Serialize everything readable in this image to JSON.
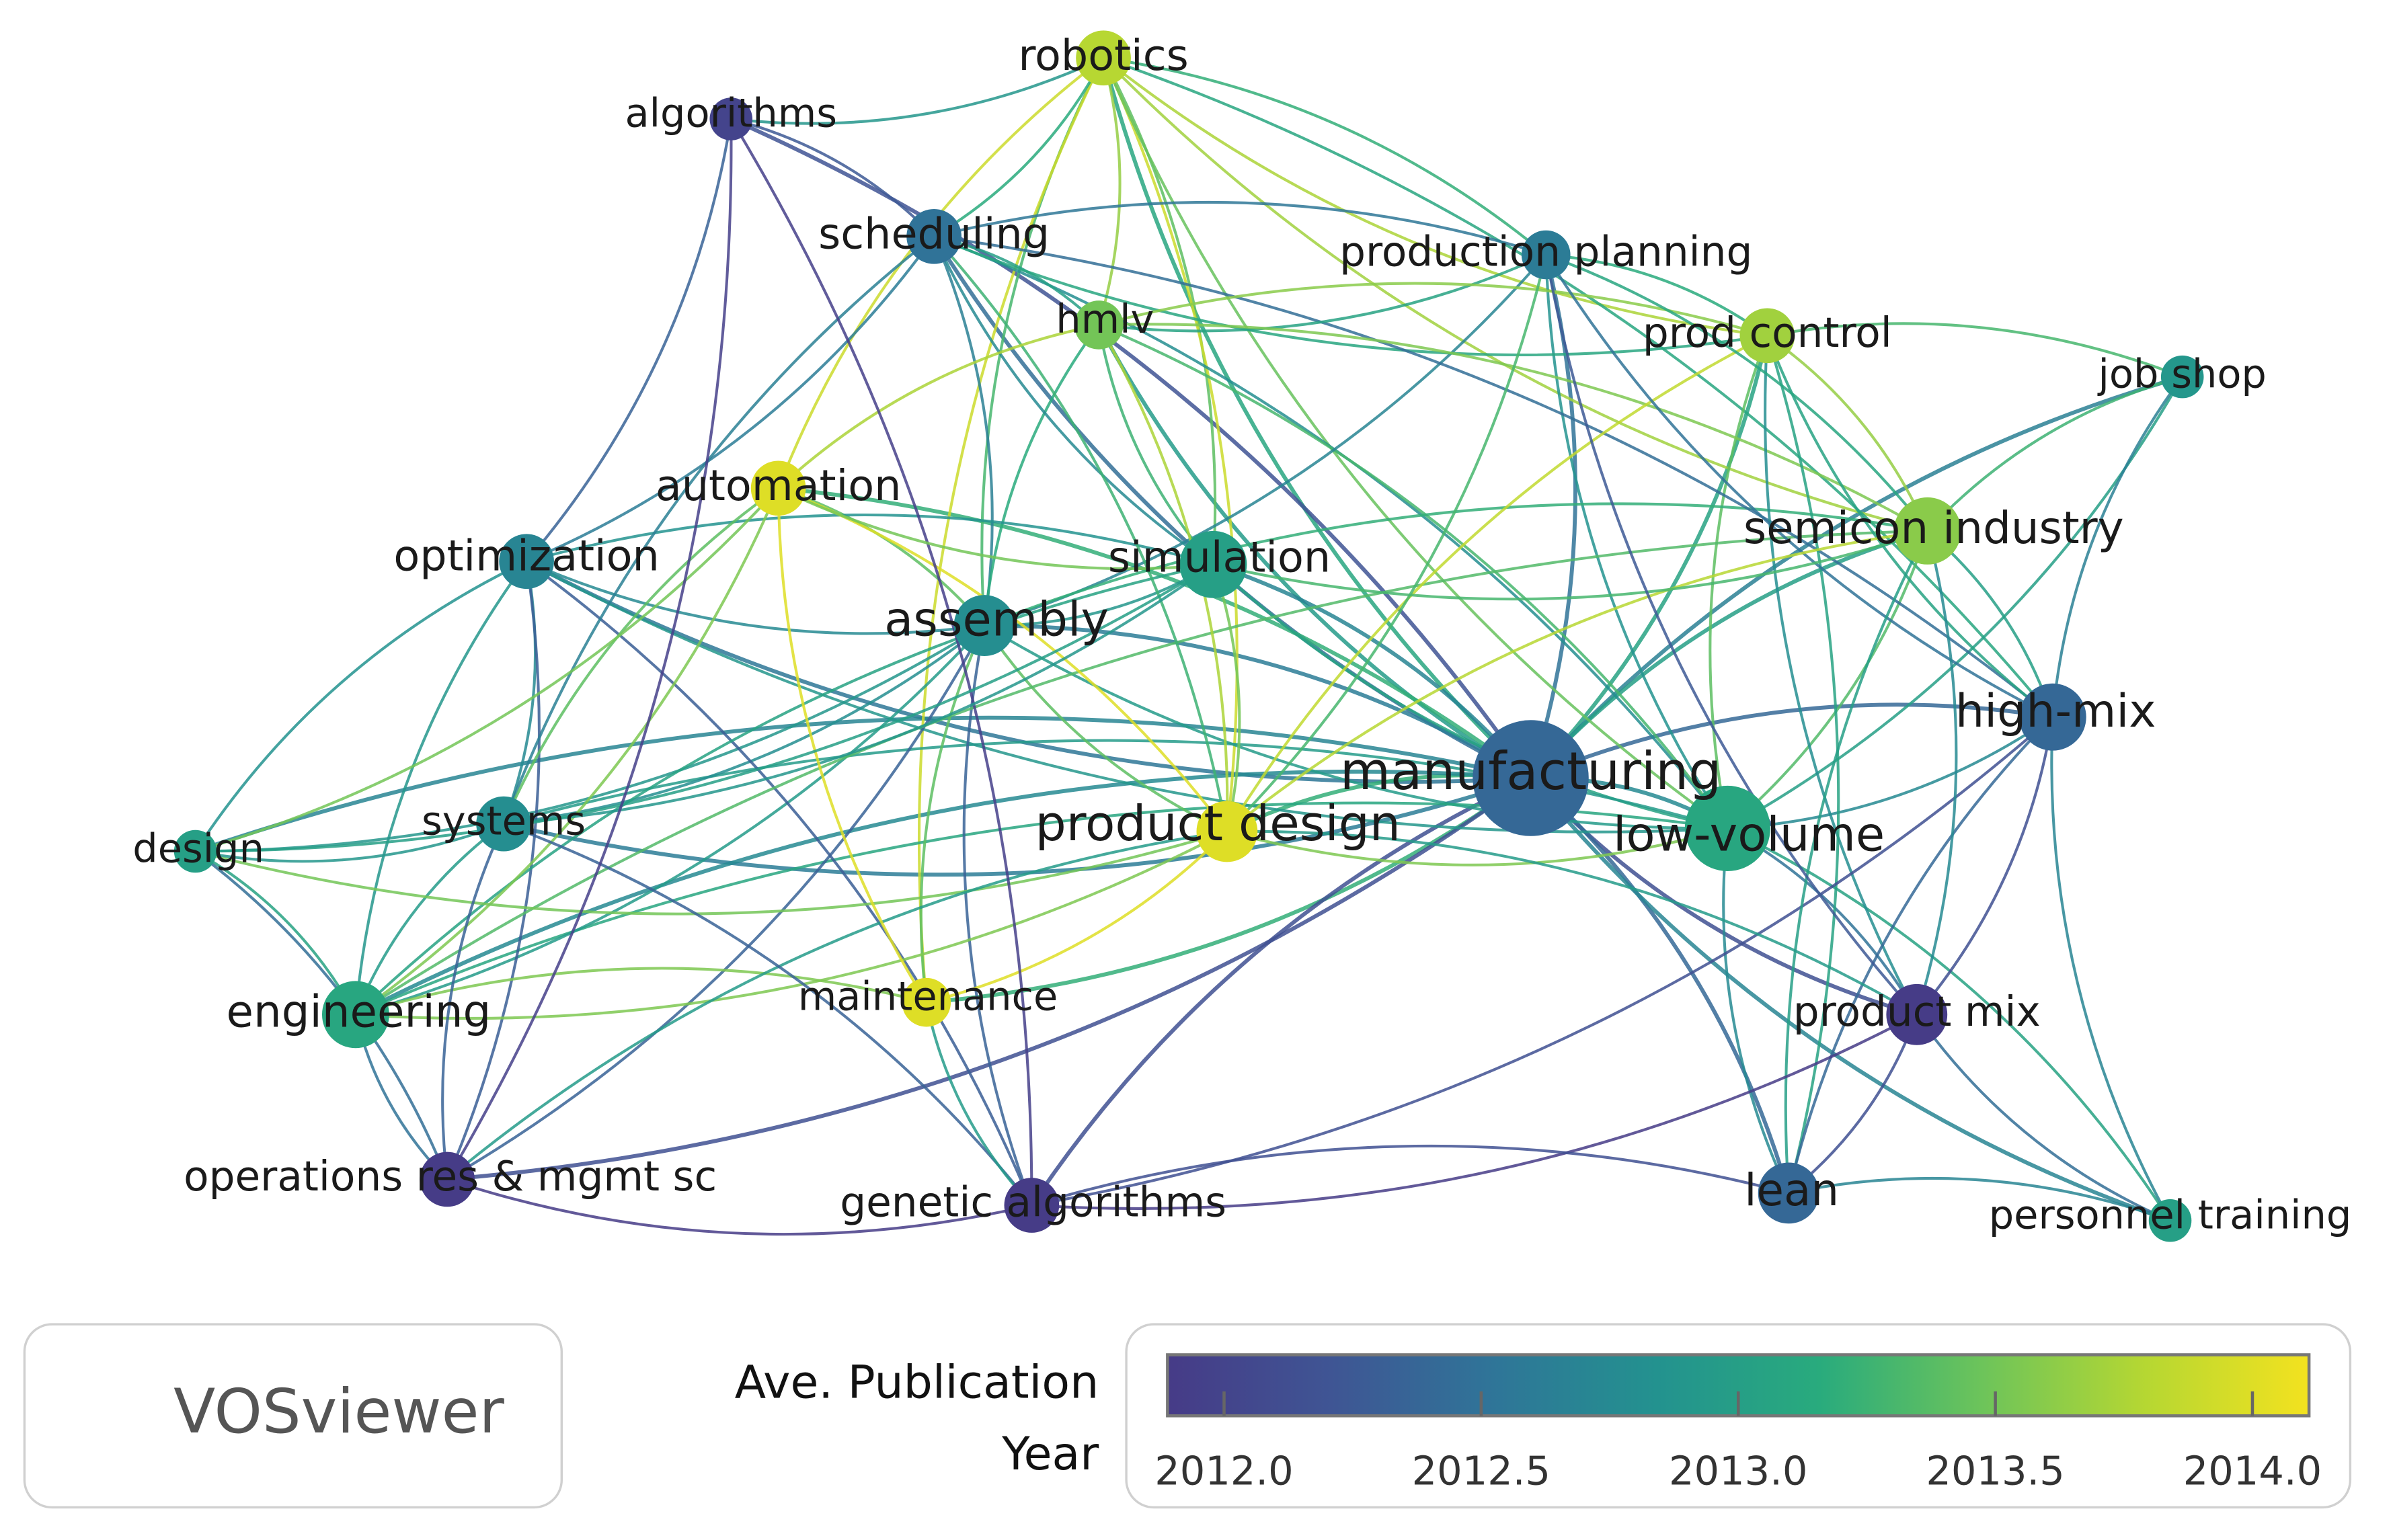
{
  "nodes": [
    {
      "label": "robotics",
      "year": 2013.8
    },
    {
      "label": "algorithms",
      "year": 2012.0
    },
    {
      "label": "scheduling",
      "year": 2012.5
    },
    {
      "label": "production planning",
      "year": 2012.6
    },
    {
      "label": "hmlv",
      "year": 2013.5
    },
    {
      "label": "prod control",
      "year": 2013.7
    },
    {
      "label": "job shop",
      "year": 2012.9
    },
    {
      "label": "automation",
      "year": 2014.0
    },
    {
      "label": "optimization",
      "year": 2012.7
    },
    {
      "label": "simulation",
      "year": 2013.0
    },
    {
      "label": "semicon industry",
      "year": 2013.6
    },
    {
      "label": "assembly",
      "year": 2012.8
    },
    {
      "label": "high-mix",
      "year": 2012.4
    },
    {
      "label": "manufacturing",
      "year": 2012.4
    },
    {
      "label": "design",
      "year": 2013.0
    },
    {
      "label": "systems",
      "year": 2012.8
    },
    {
      "label": "product design",
      "year": 2014.0
    },
    {
      "label": "low-volume",
      "year": 2013.1
    },
    {
      "label": "engineering",
      "year": 2013.1
    },
    {
      "label": "maintenance",
      "year": 2014.0
    },
    {
      "label": "product mix",
      "year": 2011.9
    },
    {
      "label": "operations res & mgmt sc",
      "year": 2011.9
    },
    {
      "label": "genetic algorithms",
      "year": 2011.9
    },
    {
      "label": "lean",
      "year": 2012.4
    },
    {
      "label": "personnel training",
      "year": 2013.0
    }
  ],
  "colorbar": {
    "title": [
      "Ave. Publication",
      "Year"
    ],
    "range": [
      2011.89,
      2014.11
    ],
    "ticks": [
      {
        "value": 2012,
        "label": "2012.0"
      },
      {
        "value": 2012.5,
        "label": "2012.5"
      },
      {
        "value": 2013,
        "label": "2013.0"
      },
      {
        "value": 2013.5,
        "label": "2013.5"
      },
      {
        "value": 2014,
        "label": "2014.0"
      }
    ],
    "colors": [
      "#463b87",
      "#3f5594",
      "#2f7598",
      "#23928f",
      "#29ab7d",
      "#6dc45a",
      "#b6d732",
      "#f3e21f"
    ]
  },
  "brand": "VOSviewer"
}
